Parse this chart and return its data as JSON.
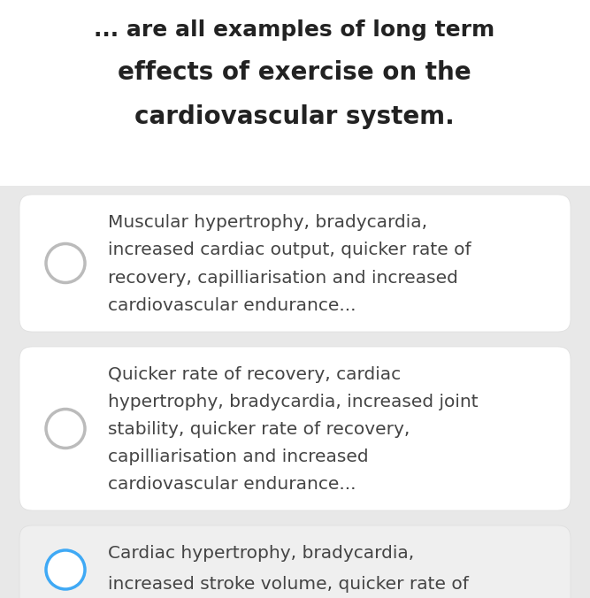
{
  "outer_bg": "#e8e8e8",
  "title_bg": "#ffffff",
  "title_lines": [
    "... are all examples of long term",
    "effects of exercise on the",
    "cardiovascular system."
  ],
  "title_color": "#222222",
  "title_fontsize": 20,
  "title_line1_fontsize": 18,
  "options": [
    {
      "lines": [
        "Muscular hypertrophy, bradycardia,",
        "increased cardiac output, quicker rate of",
        "recovery, capilliarisation and increased",
        "cardiovascular endurance..."
      ],
      "selected": false,
      "circle_color": "#bbbbbb",
      "bg_color": "#ffffff",
      "border_color": "#dddddd"
    },
    {
      "lines": [
        "Quicker rate of recovery, cardiac",
        "hypertrophy, bradycardia, increased joint",
        "stability, quicker rate of recovery,",
        "capilliarisation and increased",
        "cardiovascular endurance..."
      ],
      "selected": false,
      "circle_color": "#bbbbbb",
      "bg_color": "#ffffff",
      "border_color": "#dddddd"
    },
    {
      "lines": [
        "Cardiac hypertrophy, bradycardia,",
        "increased stroke volume, quicker rate of"
      ],
      "selected": true,
      "circle_color": "#3fa9f5",
      "bg_color": "#efefef",
      "border_color": "#dddddd"
    }
  ],
  "option_text_color": "#444444",
  "option_fontsize": 14.5
}
